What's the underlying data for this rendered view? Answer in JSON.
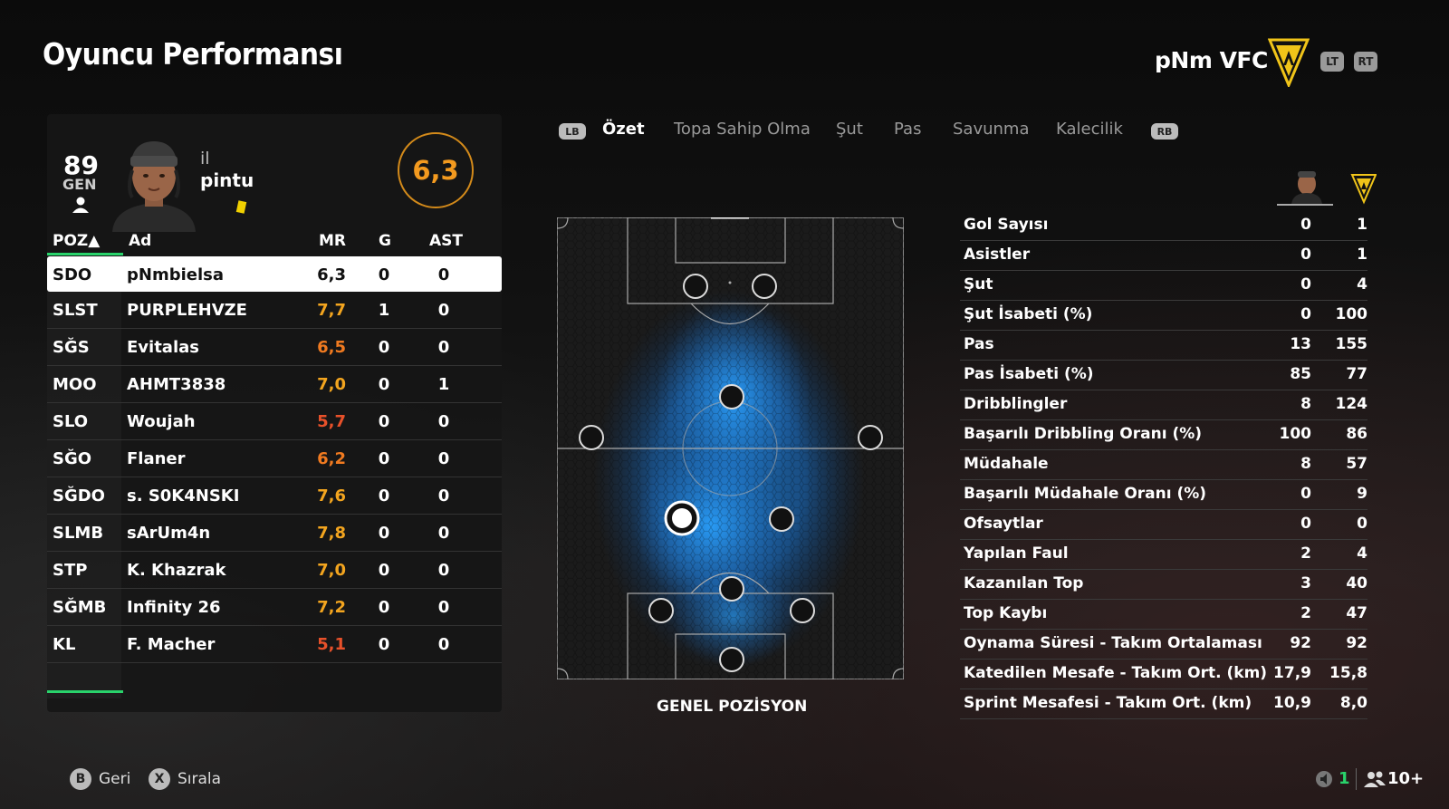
{
  "page": {
    "title": "Oyuncu Performansı"
  },
  "club": {
    "name": "pNm VFC",
    "lt": "LT",
    "rt": "RT"
  },
  "player": {
    "overall": "89",
    "overall_label": "GEN",
    "first_name": "il",
    "last_name": "pintu",
    "match_rating": "6,3"
  },
  "table": {
    "headers": {
      "poz": "POZ▲",
      "name": "Ad",
      "mr": "MR",
      "g": "G",
      "ast": "AST"
    },
    "rows": [
      {
        "poz": "SDO",
        "name": "pNmbielsa",
        "mr": "6,3",
        "g": "0",
        "ast": "0",
        "mr_color": "#111111"
      },
      {
        "poz": "SLST",
        "name": "PURPLEHVZE",
        "mr": "7,7",
        "g": "1",
        "ast": "0",
        "mr_color": "#f3a51f"
      },
      {
        "poz": "SĞS",
        "name": "Evitalas",
        "mr": "6,5",
        "g": "0",
        "ast": "0",
        "mr_color": "#f07a20"
      },
      {
        "poz": "MOO",
        "name": "AHMT3838",
        "mr": "7,0",
        "g": "0",
        "ast": "1",
        "mr_color": "#f3a51f"
      },
      {
        "poz": "SLO",
        "name": "Woujah",
        "mr": "5,7",
        "g": "0",
        "ast": "0",
        "mr_color": "#e8512a"
      },
      {
        "poz": "SĞO",
        "name": "Flaner",
        "mr": "6,2",
        "g": "0",
        "ast": "0",
        "mr_color": "#f07a20"
      },
      {
        "poz": "SĞDO",
        "name": "s. S0K4NSKI",
        "mr": "7,6",
        "g": "0",
        "ast": "0",
        "mr_color": "#f3a51f"
      },
      {
        "poz": "SLMB",
        "name": "sArUm4n",
        "mr": "7,8",
        "g": "0",
        "ast": "0",
        "mr_color": "#f3a51f"
      },
      {
        "poz": "STP",
        "name": "K. Khazrak",
        "mr": "7,0",
        "g": "0",
        "ast": "0",
        "mr_color": "#f3a51f"
      },
      {
        "poz": "SĞMB",
        "name": "Infinity 26",
        "mr": "7,2",
        "g": "0",
        "ast": "0",
        "mr_color": "#f3a51f"
      },
      {
        "poz": "KL",
        "name": "F. Macher",
        "mr": "5,1",
        "g": "0",
        "ast": "0",
        "mr_color": "#e8512a"
      }
    ]
  },
  "tabs": {
    "lb": "LB",
    "rb": "RB",
    "items": [
      "Özet",
      "Topa Sahip Olma",
      "Şut",
      "Pas",
      "Savunma",
      "Kalecilik"
    ]
  },
  "pitch": {
    "label": "GENEL POZİSYON"
  },
  "stats": [
    {
      "label": "Gol Sayısı",
      "player": "0",
      "team": "1"
    },
    {
      "label": "Asistler",
      "player": "0",
      "team": "1"
    },
    {
      "label": "Şut",
      "player": "0",
      "team": "4"
    },
    {
      "label": "Şut İsabeti (%)",
      "player": "0",
      "team": "100"
    },
    {
      "label": "Pas",
      "player": "13",
      "team": "155"
    },
    {
      "label": "Pas İsabeti (%)",
      "player": "85",
      "team": "77"
    },
    {
      "label": "Dribblingler",
      "player": "8",
      "team": "124"
    },
    {
      "label": "Başarılı Dribbling Oranı (%)",
      "player": "100",
      "team": "86"
    },
    {
      "label": "Müdahale",
      "player": "8",
      "team": "57"
    },
    {
      "label": "Başarılı Müdahale Oranı (%)",
      "player": "0",
      "team": "9"
    },
    {
      "label": "Ofsaytlar",
      "player": "0",
      "team": "0"
    },
    {
      "label": "Yapılan Faul",
      "player": "2",
      "team": "4"
    },
    {
      "label": "Kazanılan Top",
      "player": "3",
      "team": "40"
    },
    {
      "label": "Top Kaybı",
      "player": "2",
      "team": "47"
    },
    {
      "label": "Oynama Süresi - Takım Ortalaması",
      "player": "92",
      "team": "92"
    },
    {
      "label": "Katedilen Mesafe - Takım Ort. (km)",
      "player": "17,9",
      "team": "15,8"
    },
    {
      "label": "Sprint Mesafesi - Takım Ort. (km)",
      "player": "10,9",
      "team": "8,0"
    }
  ],
  "footer": {
    "back_key": "B",
    "back_label": "Geri",
    "sort_key": "X",
    "sort_label": "Sırala",
    "mic_count": "1",
    "players_count": "10+"
  },
  "colors": {
    "accent_green": "#29d36b",
    "rating_orange": "#f39a1f",
    "heat_blue": "#1e8fff"
  }
}
